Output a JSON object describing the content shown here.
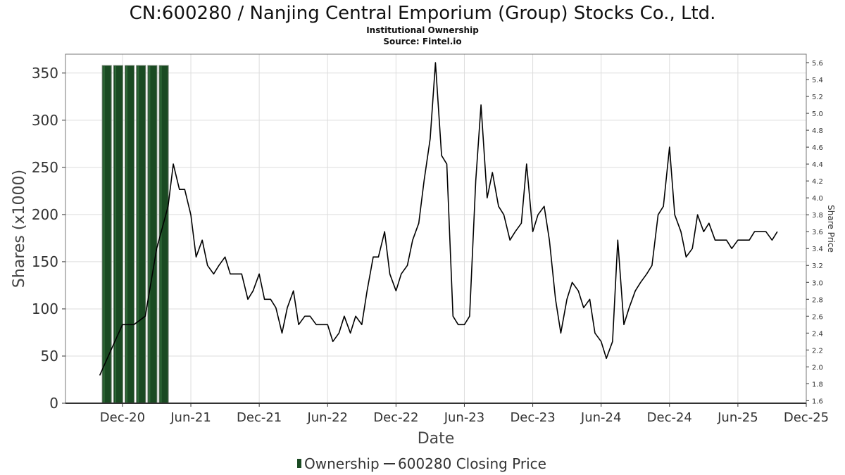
{
  "chart_data": {
    "type": "bar",
    "title": "CN:600280 / Nanjing Central Emporium (Group) Stocks Co., Ltd.",
    "subtitle_lines": [
      "Institutional Ownership",
      "Source: Fintel.io"
    ],
    "xlabel": "Date",
    "ylabel": "Shares (x1000)",
    "ylabel_right": "Share Price",
    "x_ticks": [
      "Dec-20",
      "Jun-21",
      "Dec-21",
      "Jun-22",
      "Dec-22",
      "Jun-23",
      "Dec-23",
      "Jun-24",
      "Dec-24",
      "Jun-25",
      "Dec-25"
    ],
    "x_range": [
      "2020-07",
      "2025-12"
    ],
    "ylim": [
      0,
      370
    ],
    "y_ticks": [
      0,
      50,
      100,
      150,
      200,
      250,
      300,
      350
    ],
    "ylim_right": [
      1.57,
      5.7
    ],
    "y_ticks_right": [
      "1.6",
      "1.8",
      "2.0",
      "2.2",
      "2.4",
      "2.6",
      "2.8",
      "3.0",
      "3.2",
      "3.4",
      "3.6",
      "3.8",
      "4.0",
      "4.2",
      "4.4",
      "4.6",
      "4.8",
      "5.0",
      "5.2",
      "5.4",
      "5.6"
    ],
    "grid": true,
    "legend_position": "bottom-center",
    "series": [
      {
        "name": "Ownership",
        "kind": "bar",
        "color": "#1a4a22",
        "x": [
          "2020-10-20",
          "2020-11-20",
          "2020-12-20",
          "2021-01-20",
          "2021-02-20",
          "2021-03-20"
        ],
        "values": [
          358,
          358,
          358,
          358,
          358,
          358
        ]
      },
      {
        "name": "600280 Closing Price",
        "kind": "line",
        "axis": "right",
        "color": "#000000",
        "x": [
          "2020-10-01",
          "2020-11-01",
          "2020-12-01",
          "2021-01-01",
          "2021-02-01",
          "2021-03-01",
          "2021-04-01",
          "2021-04-15",
          "2021-05-01",
          "2021-05-15",
          "2021-06-01",
          "2021-06-15",
          "2021-07-01",
          "2021-07-15",
          "2021-08-01",
          "2021-08-15",
          "2021-09-01",
          "2021-09-15",
          "2021-10-01",
          "2021-10-15",
          "2021-11-01",
          "2021-11-15",
          "2021-12-01",
          "2021-12-15",
          "2022-01-01",
          "2022-01-15",
          "2022-02-01",
          "2022-02-15",
          "2022-03-01",
          "2022-03-15",
          "2022-04-01",
          "2022-04-15",
          "2022-05-01",
          "2022-05-15",
          "2022-06-01",
          "2022-06-15",
          "2022-07-01",
          "2022-07-15",
          "2022-08-01",
          "2022-08-15",
          "2022-09-01",
          "2022-09-15",
          "2022-10-01",
          "2022-10-15",
          "2022-11-01",
          "2022-11-15",
          "2022-12-01",
          "2022-12-15",
          "2023-01-01",
          "2023-01-15",
          "2023-02-01",
          "2023-02-15",
          "2023-03-01",
          "2023-03-15",
          "2023-04-01",
          "2023-04-15",
          "2023-05-01",
          "2023-05-15",
          "2023-06-01",
          "2023-06-15",
          "2023-07-01",
          "2023-07-15",
          "2023-08-01",
          "2023-08-15",
          "2023-09-01",
          "2023-09-15",
          "2023-10-01",
          "2023-10-15",
          "2023-11-01",
          "2023-11-15",
          "2023-12-01",
          "2023-12-15",
          "2024-01-01",
          "2024-01-15",
          "2024-02-01",
          "2024-02-15",
          "2024-03-01",
          "2024-03-15",
          "2024-04-01",
          "2024-04-15",
          "2024-05-01",
          "2024-05-15",
          "2024-06-01",
          "2024-06-15",
          "2024-07-01",
          "2024-07-15",
          "2024-08-01",
          "2024-08-15",
          "2024-09-01",
          "2024-09-15",
          "2024-10-01",
          "2024-10-15",
          "2024-11-01",
          "2024-11-15",
          "2024-12-01",
          "2024-12-15",
          "2025-01-01",
          "2025-01-15",
          "2025-02-01",
          "2025-02-15",
          "2025-03-01",
          "2025-03-15",
          "2025-04-01",
          "2025-04-15",
          "2025-05-01",
          "2025-05-15",
          "2025-06-01",
          "2025-06-15",
          "2025-07-01",
          "2025-07-15",
          "2025-08-01",
          "2025-08-15",
          "2025-09-01",
          "2025-09-15"
        ],
        "values": [
          1.9,
          2.2,
          2.5,
          2.5,
          2.6,
          3.4,
          3.9,
          4.4,
          4.1,
          4.1,
          3.8,
          3.3,
          3.5,
          3.2,
          3.1,
          3.2,
          3.3,
          3.1,
          3.1,
          3.1,
          2.8,
          2.9,
          3.1,
          2.8,
          2.8,
          2.7,
          2.4,
          2.7,
          2.9,
          2.5,
          2.6,
          2.6,
          2.5,
          2.5,
          2.5,
          2.3,
          2.4,
          2.6,
          2.4,
          2.6,
          2.5,
          2.9,
          3.3,
          3.3,
          3.6,
          3.1,
          2.9,
          3.1,
          3.2,
          3.5,
          3.7,
          4.2,
          4.7,
          5.6,
          4.5,
          4.4,
          2.6,
          2.5,
          2.5,
          2.6,
          4.2,
          5.1,
          4.0,
          4.3,
          3.9,
          3.8,
          3.5,
          3.6,
          3.7,
          4.4,
          3.6,
          3.8,
          3.9,
          3.5,
          2.8,
          2.4,
          2.8,
          3.0,
          2.9,
          2.7,
          2.8,
          2.4,
          2.3,
          2.1,
          2.3,
          3.5,
          2.5,
          2.7,
          2.9,
          3.0,
          3.1,
          3.2,
          3.8,
          3.9,
          4.6,
          3.8,
          3.6,
          3.3,
          3.4,
          3.8,
          3.6,
          3.7,
          3.5,
          3.5,
          3.5,
          3.4,
          3.5,
          3.5,
          3.5,
          3.6,
          3.6,
          3.6,
          3.5,
          3.6
        ]
      }
    ]
  },
  "legend": {
    "ownership_label": "Ownership",
    "price_label": "600280 Closing Price"
  }
}
